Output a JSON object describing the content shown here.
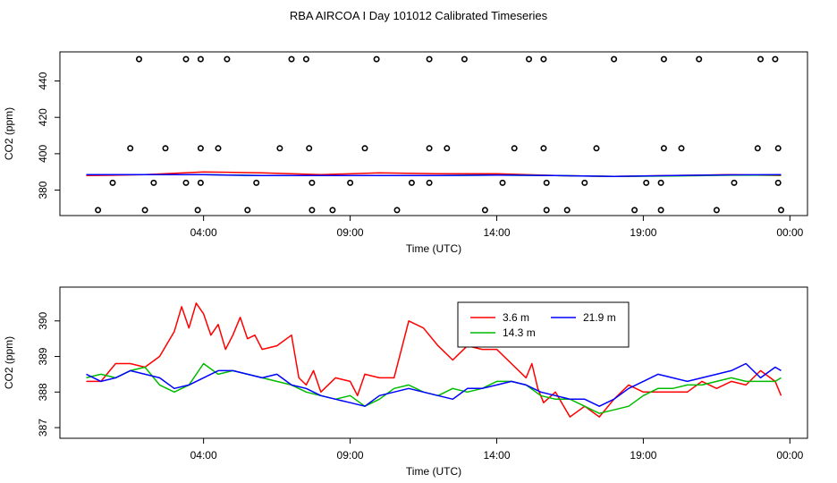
{
  "title": "RBA AIRCOA I  Day 101012  Calibrated Timeseries",
  "chart_data": [
    {
      "type": "line",
      "xlabel": "Time (UTC)",
      "ylabel": "CO2 (ppm)",
      "x_unit": "hours UTC",
      "xlim": [
        -0.9,
        24.6
      ],
      "ylim": [
        366,
        456
      ],
      "x_ticks": [
        {
          "x": 4,
          "label": "04:00"
        },
        {
          "x": 9,
          "label": "09:00"
        },
        {
          "x": 14,
          "label": "14:00"
        },
        {
          "x": 19,
          "label": "19:00"
        },
        {
          "x": 24,
          "label": "00:00"
        }
      ],
      "y_ticks": [
        380,
        400,
        420,
        440
      ],
      "series": [
        {
          "color": "#ff0000",
          "x": [
            0,
            2,
            4,
            6,
            8,
            10,
            12,
            14,
            16,
            18,
            20,
            22,
            23.7
          ],
          "y": [
            388,
            388.5,
            390,
            389.5,
            388.5,
            389.5,
            389,
            389,
            388,
            387.5,
            388,
            388.5,
            388
          ]
        },
        {
          "color": "#00cc00",
          "x": [
            0,
            2,
            4,
            6,
            8,
            10,
            12,
            14,
            16,
            18,
            20,
            22,
            23.7
          ],
          "y": [
            388.5,
            388.5,
            388.5,
            388,
            388,
            388,
            388,
            388.3,
            388,
            387.5,
            387.8,
            388.2,
            388.3
          ]
        },
        {
          "color": "#0000ff",
          "x": [
            0,
            2,
            4,
            6,
            8,
            10,
            12,
            14,
            16,
            18,
            20,
            22,
            23.7
          ],
          "y": [
            388.5,
            388.5,
            388.5,
            388,
            388,
            388,
            388,
            388.3,
            388,
            387.5,
            388,
            388.4,
            388.5
          ]
        }
      ],
      "points": {
        "marker": "circle",
        "x": [
          1.8,
          3.4,
          3.9,
          4.8,
          7.0,
          7.5,
          9.9,
          11.7,
          12.9,
          15.1,
          15.6,
          18.0,
          19.7,
          20.9,
          23.0,
          23.5,
          1.5,
          2.7,
          3.9,
          4.5,
          6.6,
          7.6,
          9.5,
          11.7,
          12.3,
          14.6,
          15.6,
          17.4,
          19.7,
          20.3,
          22.9,
          23.6,
          0.9,
          2.3,
          3.4,
          3.9,
          5.8,
          7.7,
          9.0,
          11.1,
          11.7,
          14.2,
          15.7,
          17.0,
          19.1,
          19.6,
          22.1,
          23.6,
          0.4,
          2.0,
          3.8,
          5.5,
          7.7,
          8.4,
          10.6,
          13.6,
          15.7,
          16.4,
          18.7,
          19.6,
          21.5,
          23.7
        ],
        "y": [
          452,
          452,
          452,
          452,
          452,
          452,
          452,
          452,
          452,
          452,
          452,
          452,
          452,
          452,
          452,
          452,
          403,
          403,
          403,
          403,
          403,
          403,
          403,
          403,
          403,
          403,
          403,
          403,
          403,
          403,
          403,
          403,
          384,
          384,
          384,
          384,
          384,
          384,
          384,
          384,
          384,
          384,
          384,
          384,
          384,
          384,
          384,
          384,
          369,
          369,
          369,
          369,
          369,
          369,
          369,
          369,
          369,
          369,
          369,
          369,
          369,
          369
        ]
      }
    },
    {
      "type": "line",
      "xlabel": "Time (UTC)",
      "ylabel": "CO2 (ppm)",
      "x_unit": "hours UTC",
      "xlim": [
        -0.9,
        24.6
      ],
      "ylim": [
        386.7,
        390.95
      ],
      "x_ticks": [
        {
          "x": 4,
          "label": "04:00"
        },
        {
          "x": 9,
          "label": "09:00"
        },
        {
          "x": 14,
          "label": "14:00"
        },
        {
          "x": 19,
          "label": "19:00"
        },
        {
          "x": 24,
          "label": "00:00"
        }
      ],
      "y_ticks": [
        387,
        388,
        389,
        390
      ],
      "legend": "inside, top-center",
      "series": [
        {
          "name": "3.6 m",
          "color": "#ff0000",
          "x": [
            0,
            0.5,
            1,
            1.5,
            2,
            2.5,
            3,
            3.25,
            3.5,
            3.75,
            4,
            4.25,
            4.5,
            4.75,
            5,
            5.25,
            5.5,
            5.75,
            6,
            6.5,
            7,
            7.25,
            7.5,
            7.75,
            8,
            8.5,
            9,
            9.25,
            9.5,
            10,
            10.5,
            11,
            11.5,
            12,
            12.5,
            13,
            13.5,
            14,
            14.5,
            15,
            15.2,
            15.4,
            15.6,
            16,
            16.5,
            17,
            17.5,
            18,
            18.5,
            19,
            19.5,
            20,
            20.5,
            21,
            21.5,
            22,
            22.5,
            23,
            23.5,
            23.7
          ],
          "y": [
            388.3,
            388.3,
            388.8,
            388.8,
            388.7,
            389,
            389.7,
            390.4,
            389.8,
            390.5,
            390.2,
            389.6,
            389.9,
            389.2,
            389.6,
            390.1,
            389.5,
            389.6,
            389.2,
            389.3,
            389.6,
            388.4,
            388.2,
            388.6,
            388.0,
            388.4,
            388.3,
            387.9,
            388.5,
            388.4,
            388.4,
            390.0,
            389.8,
            389.3,
            388.9,
            389.3,
            389.2,
            389.2,
            388.8,
            388.4,
            388.8,
            388.1,
            387.7,
            388.0,
            387.3,
            387.6,
            387.3,
            387.8,
            388.2,
            388.0,
            388.0,
            388.0,
            388.0,
            388.3,
            388.1,
            388.3,
            388.2,
            388.6,
            388.3,
            387.9
          ]
        },
        {
          "name": "14.3 m",
          "color": "#00bb00",
          "x": [
            0,
            0.5,
            1,
            1.5,
            2,
            2.5,
            3,
            3.5,
            4,
            4.5,
            5,
            5.5,
            6,
            6.5,
            7,
            7.5,
            8,
            8.5,
            9,
            9.5,
            10,
            10.5,
            11,
            11.5,
            12,
            12.5,
            13,
            13.5,
            14,
            14.5,
            15,
            15.5,
            16,
            16.5,
            17,
            17.5,
            18,
            18.5,
            19,
            19.5,
            20,
            20.5,
            21,
            21.5,
            22,
            22.5,
            23,
            23.5,
            23.7
          ],
          "y": [
            388.4,
            388.5,
            388.4,
            388.6,
            388.7,
            388.2,
            388.0,
            388.2,
            388.8,
            388.5,
            388.6,
            388.5,
            388.4,
            388.3,
            388.2,
            388.0,
            387.9,
            387.8,
            387.9,
            387.6,
            387.8,
            388.1,
            388.2,
            388.0,
            387.9,
            388.1,
            388.0,
            388.1,
            388.3,
            388.3,
            388.2,
            387.9,
            387.8,
            387.8,
            387.6,
            387.4,
            387.5,
            387.6,
            387.9,
            388.1,
            388.1,
            388.2,
            388.2,
            388.3,
            388.4,
            388.3,
            388.3,
            388.3,
            388.4
          ]
        },
        {
          "name": "21.9 m",
          "color": "#0000ff",
          "x": [
            0,
            0.5,
            1,
            1.5,
            2,
            2.5,
            3,
            3.5,
            4,
            4.5,
            5,
            5.5,
            6,
            6.5,
            7,
            7.5,
            8,
            8.5,
            9,
            9.5,
            10,
            10.5,
            11,
            11.5,
            12,
            12.5,
            13,
            13.5,
            14,
            14.5,
            15,
            15.5,
            16,
            16.5,
            17,
            17.5,
            18,
            18.5,
            19,
            19.5,
            20,
            20.5,
            21,
            21.5,
            22,
            22.5,
            23,
            23.5,
            23.7
          ],
          "y": [
            388.5,
            388.3,
            388.4,
            388.6,
            388.5,
            388.4,
            388.1,
            388.2,
            388.4,
            388.6,
            388.6,
            388.5,
            388.4,
            388.5,
            388.2,
            388.1,
            387.9,
            387.8,
            387.7,
            387.6,
            387.9,
            388.0,
            388.1,
            388.0,
            387.9,
            387.8,
            388.1,
            388.1,
            388.2,
            388.3,
            388.2,
            388.0,
            387.9,
            387.8,
            387.8,
            387.6,
            387.8,
            388.1,
            388.3,
            388.5,
            388.4,
            388.3,
            388.4,
            388.5,
            388.6,
            388.8,
            388.4,
            388.7,
            388.6
          ]
        }
      ]
    }
  ]
}
